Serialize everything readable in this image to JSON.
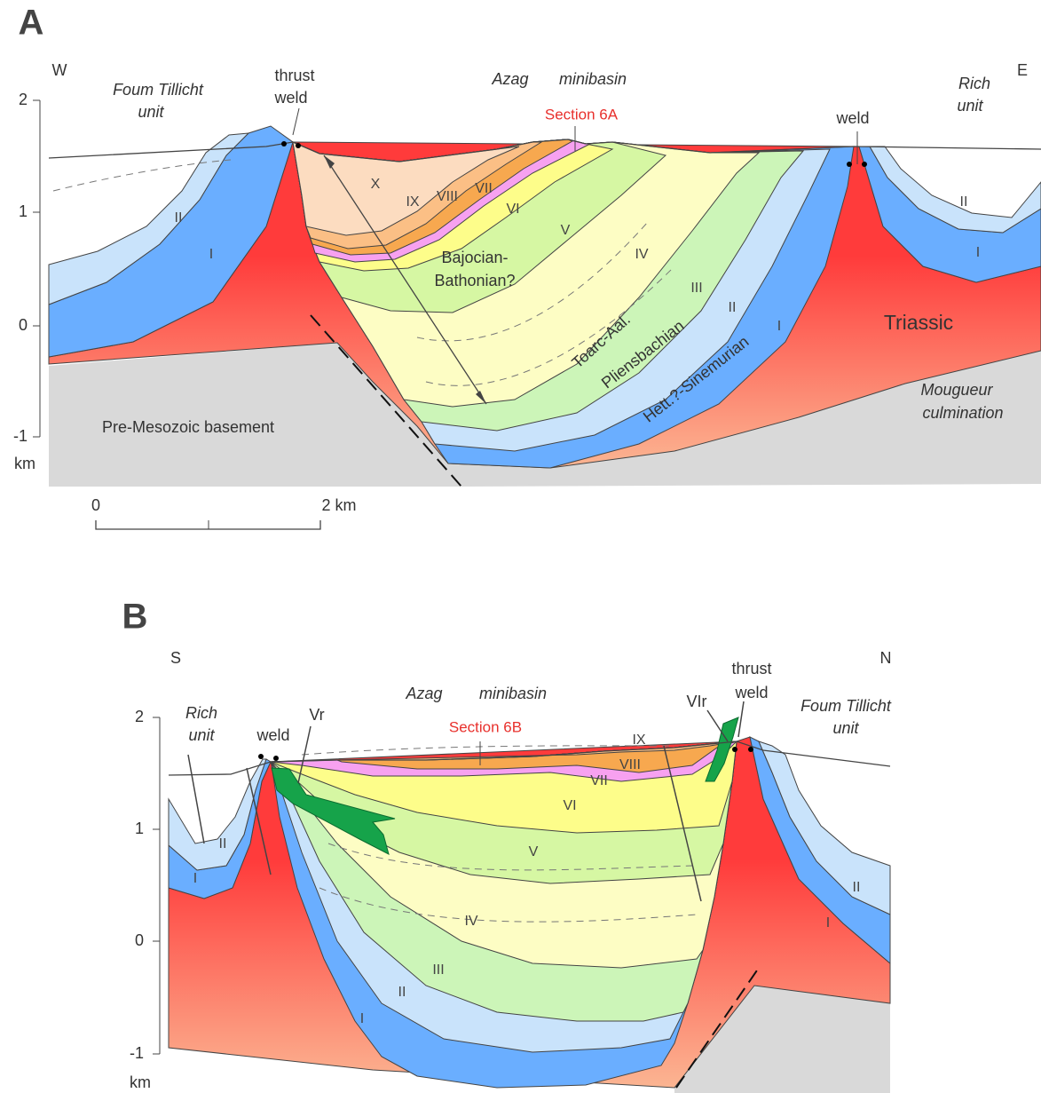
{
  "panel_a": {
    "label": "A",
    "west": "W",
    "east": "E",
    "foum_tillicht": [
      "Foum Tillicht",
      "unit"
    ],
    "thrust_weld": [
      "thrust",
      "weld"
    ],
    "minibasin": [
      "Azag",
      "minibasin"
    ],
    "section": "Section 6A",
    "rich": [
      "Rich",
      "unit"
    ],
    "weld": "weld",
    "basin_units": [
      "X",
      "IX",
      "VIII",
      "VII",
      "VI",
      "V",
      "IV",
      "III",
      "II",
      "I"
    ],
    "left_units": [
      "II",
      "I"
    ],
    "right_units": [
      "II",
      "I"
    ],
    "formations": [
      "Bajocian-",
      "Bathonian?",
      "Toarc-Aal.",
      "Pliensbachian",
      "Hett.?-Sinemurian",
      "Triassic"
    ],
    "mougueur": [
      "Mougueur",
      "culmination"
    ],
    "basement": "Pre-Mesozoic basement",
    "y_ticks": [
      2,
      1,
      0,
      -1
    ],
    "y_unit": "km",
    "scale_bar": [
      "0",
      "2 km"
    ]
  },
  "panel_b": {
    "label": "B",
    "south": "S",
    "north": "N",
    "rich": [
      "Rich",
      "unit"
    ],
    "weld": "weld",
    "vr": "Vr",
    "minibasin": [
      "Azag",
      "minibasin"
    ],
    "section": "Section 6B",
    "basin_units": [
      "IX",
      "VIII",
      "VII",
      "VI",
      "V",
      "IV",
      "III",
      "II",
      "I"
    ],
    "left_units": [
      "II",
      "I"
    ],
    "right_units": [
      "II",
      "I"
    ],
    "vir": "VIr",
    "thrust_weld": [
      "thrust",
      "weld"
    ],
    "foum_tillicht": [
      "Foum Tillicht",
      "unit"
    ],
    "y_ticks": [
      2,
      1,
      0,
      -1
    ],
    "y_unit": "km"
  }
}
